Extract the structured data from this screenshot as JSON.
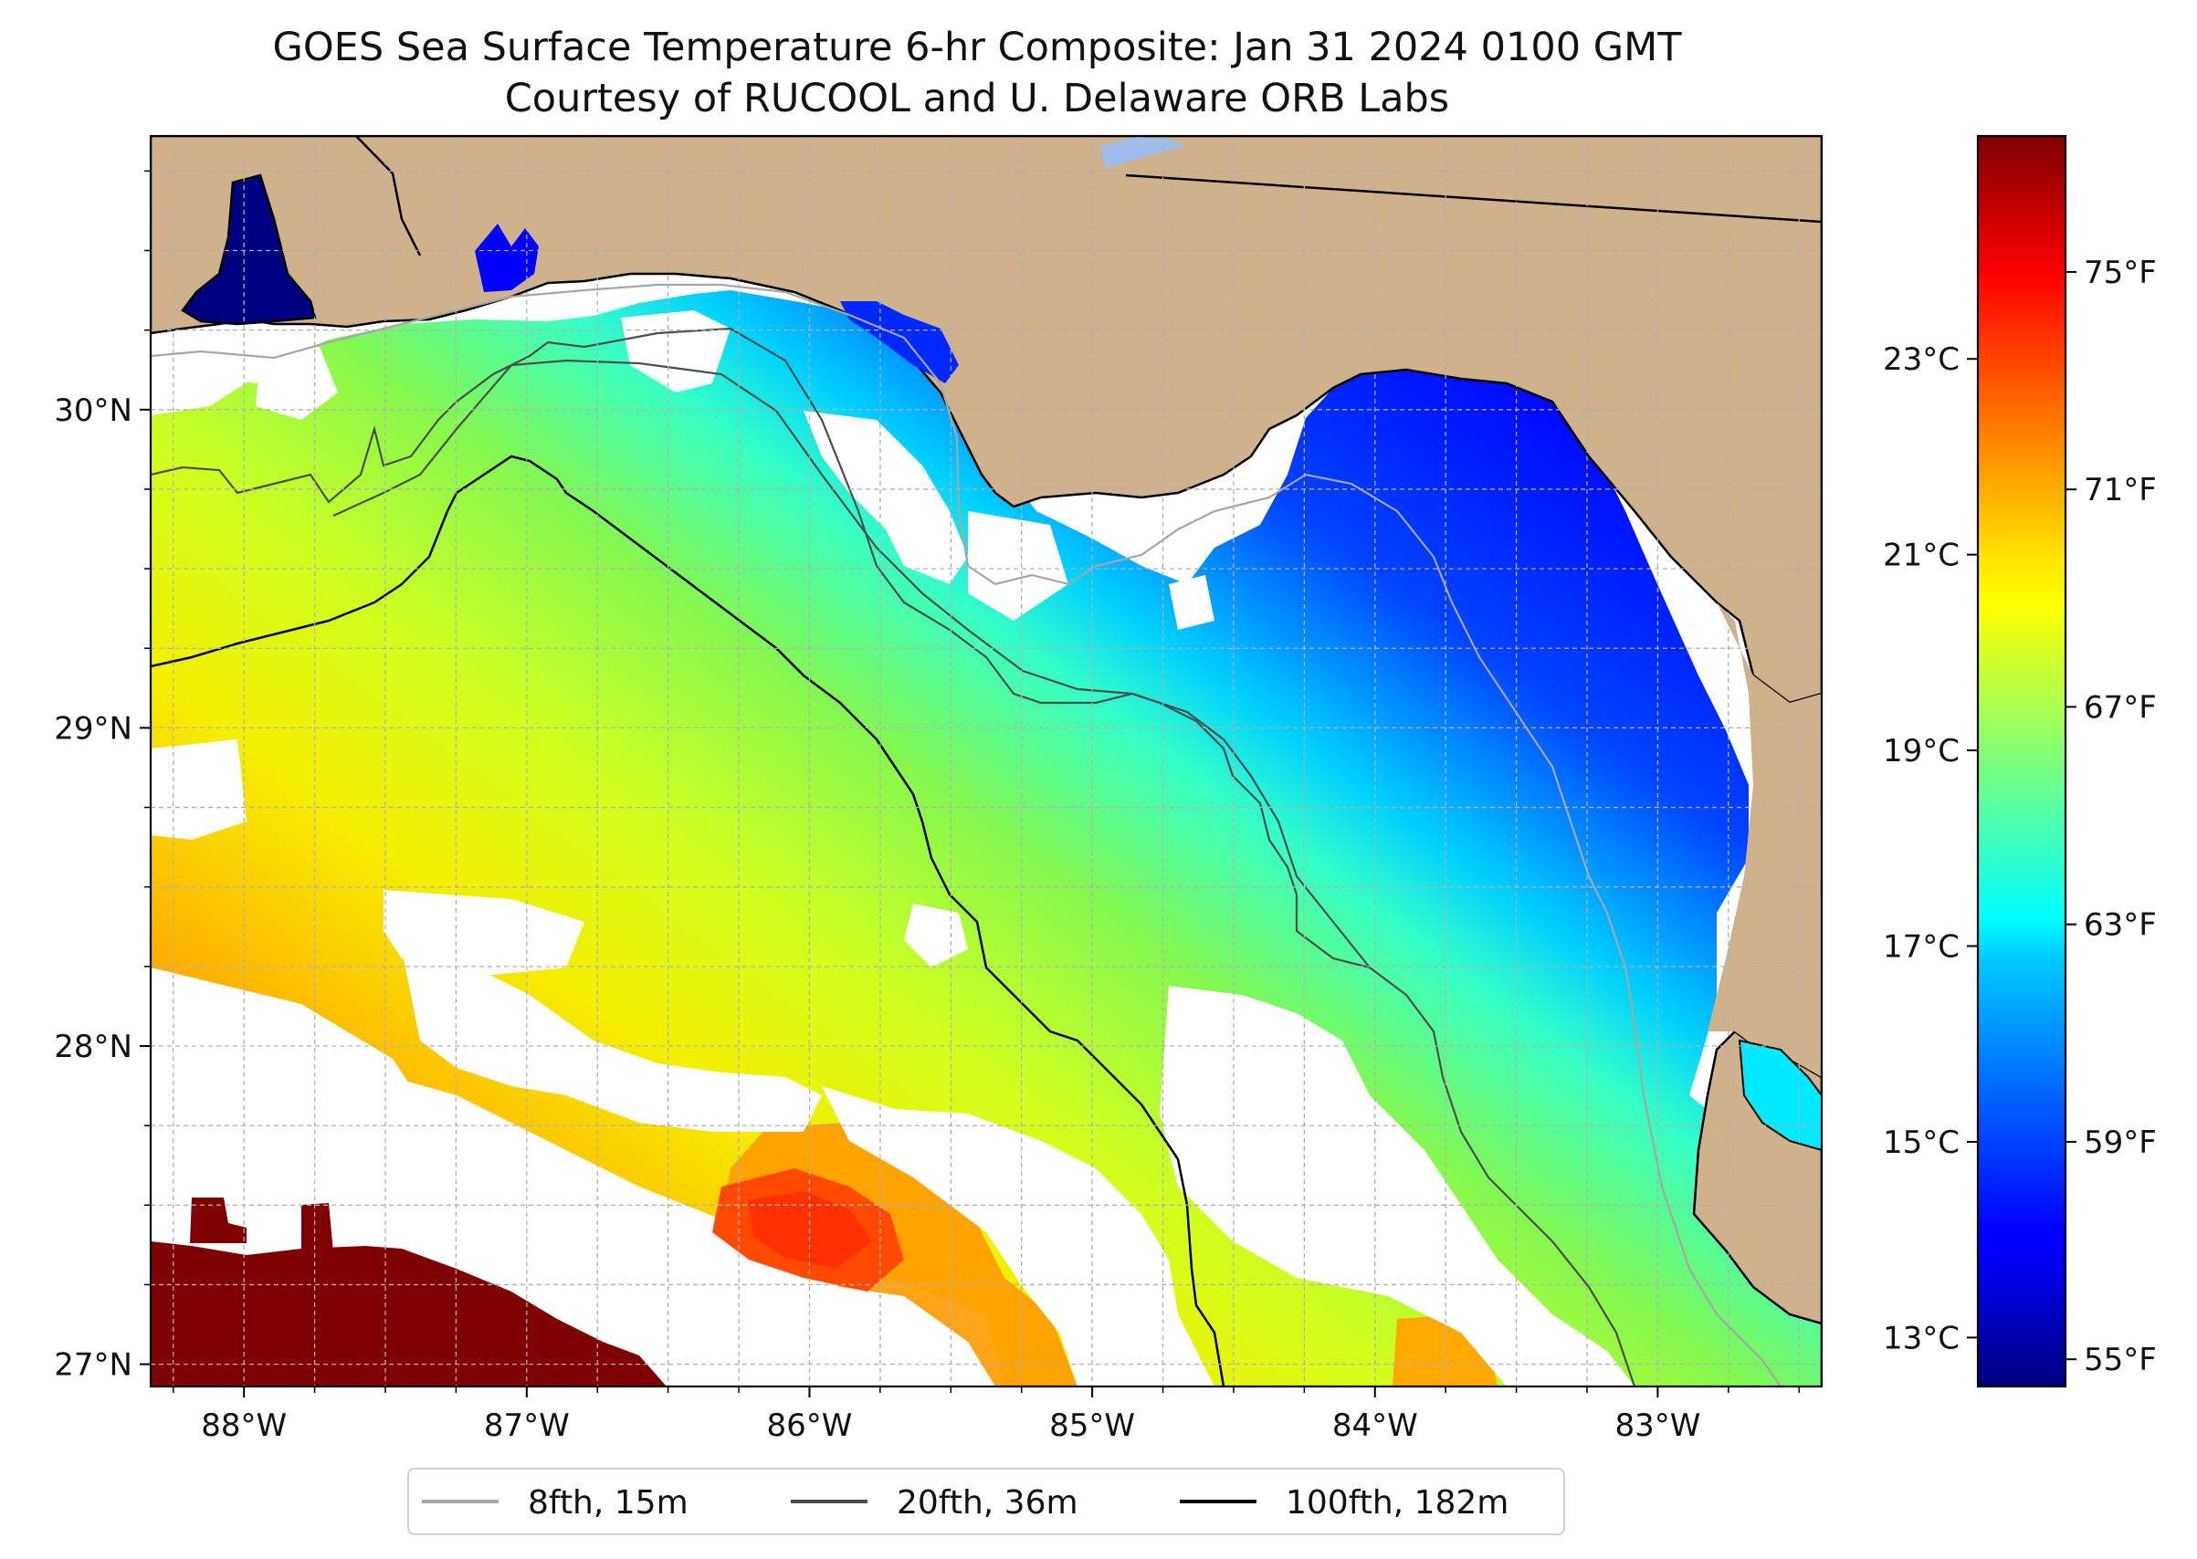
{
  "title": {
    "line1": "GOES Sea Surface Temperature 6-hr Composite: Jan 31 2024 0100 GMT",
    "line2": "Courtesy of RUCOOL and U. Delaware ORB Labs"
  },
  "map": {
    "lon_range": [
      -88.33,
      -82.42
    ],
    "lat_range": [
      26.93,
      30.86
    ],
    "lat_ticks": [
      {
        "value": 30,
        "label": "30°N"
      },
      {
        "value": 29,
        "label": "29°N"
      },
      {
        "value": 28,
        "label": "28°N"
      },
      {
        "value": 27,
        "label": "27°N"
      }
    ],
    "lon_ticks": [
      {
        "value": -88,
        "label": "88°W"
      },
      {
        "value": -87,
        "label": "87°W"
      },
      {
        "value": -86,
        "label": "86°W"
      },
      {
        "value": -85,
        "label": "85°W"
      },
      {
        "value": -84,
        "label": "84°W"
      },
      {
        "value": -83,
        "label": "83°W"
      }
    ],
    "gridlines": true,
    "grid_step_deg": 0.25,
    "land_color": "#cfb18c",
    "nodata_color": "#ffffff",
    "water_body_color": "#9fbde8"
  },
  "colorbar": {
    "colormap": "jet",
    "range_f": [
      54.5,
      77.5
    ],
    "fahrenheit_ticks": [
      {
        "value": 55,
        "label": "55°F"
      },
      {
        "value": 59,
        "label": "59°F"
      },
      {
        "value": 63,
        "label": "63°F"
      },
      {
        "value": 67,
        "label": "67°F"
      },
      {
        "value": 71,
        "label": "71°F"
      },
      {
        "value": 75,
        "label": "75°F"
      }
    ],
    "celsius_ticks": [
      {
        "value": 13,
        "label": "13°C"
      },
      {
        "value": 15,
        "label": "15°C"
      },
      {
        "value": 17,
        "label": "17°C"
      },
      {
        "value": 19,
        "label": "19°C"
      },
      {
        "value": 21,
        "label": "21°C"
      },
      {
        "value": 23,
        "label": "23°C"
      }
    ]
  },
  "legend": {
    "placement": "bottom-center",
    "items": [
      {
        "label": "8fth, 15m",
        "color": "#a6a6a6"
      },
      {
        "label": "20fth, 36m",
        "color": "#4d4d4d"
      },
      {
        "label": "100fth, 182m",
        "color": "#000000"
      }
    ]
  }
}
